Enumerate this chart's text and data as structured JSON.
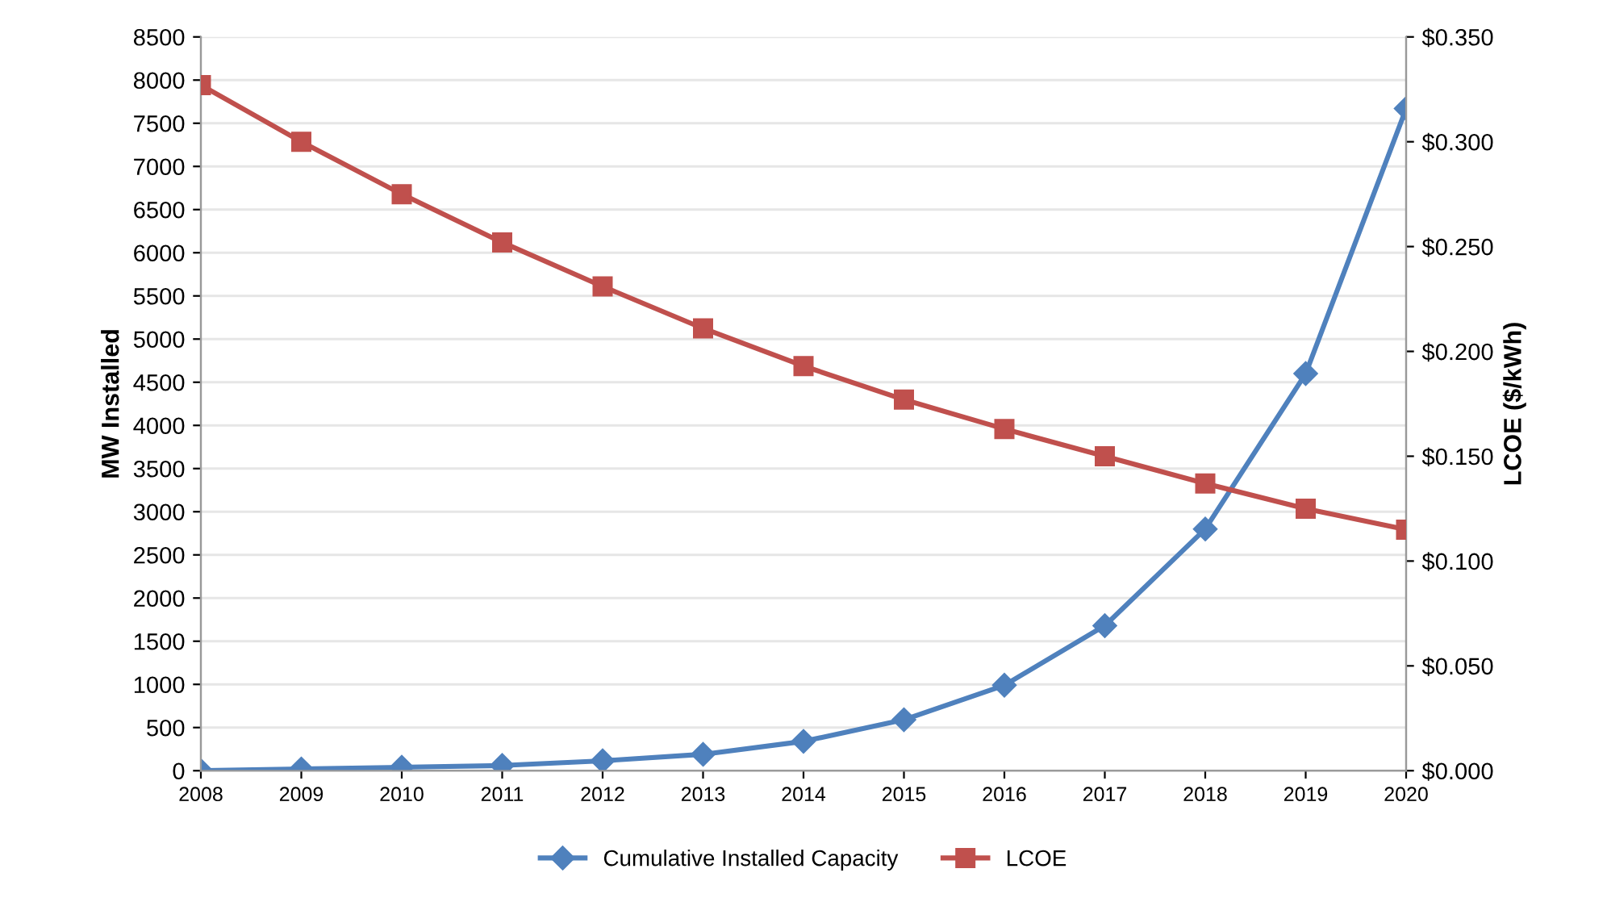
{
  "chart_data": {
    "type": "line",
    "ylabel": "MW Installed",
    "y2label": "LCOE ($/kWh)",
    "categories": [
      "2008",
      "2009",
      "2010",
      "2011",
      "2012",
      "2013",
      "2014",
      "2015",
      "2016",
      "2017",
      "2018",
      "2019",
      "2020"
    ],
    "series": [
      {
        "name": "Cumulative Installed Capacity",
        "color": "#4f81bd",
        "marker": "diamond",
        "values": [
          0,
          20,
          40,
          60,
          115,
          190,
          340,
          590,
          990,
          1680,
          2800,
          4600,
          7670
        ]
      },
      {
        "name": "LCOE",
        "color": "#c0504d",
        "marker": "square",
        "axis": "y2",
        "values": [
          0.327,
          0.3,
          0.275,
          0.252,
          0.231,
          0.211,
          0.193,
          0.177,
          0.163,
          0.15,
          0.137,
          0.125,
          0.115
        ]
      }
    ],
    "ylim": [
      0,
      8500
    ],
    "yticks": [
      0,
      500,
      1000,
      1500,
      2000,
      2500,
      3000,
      3500,
      4000,
      4500,
      5000,
      5500,
      6000,
      6500,
      7000,
      7500,
      8000,
      8500
    ],
    "y2lim": [
      0,
      0.35
    ],
    "y2ticks": [
      {
        "value": 0,
        "label": "$0.000"
      },
      {
        "value": 0.05,
        "label": "$0.050"
      },
      {
        "value": 0.1,
        "label": "$0.100"
      },
      {
        "value": 0.15,
        "label": "$0.150"
      },
      {
        "value": 0.2,
        "label": "$0.200"
      },
      {
        "value": 0.25,
        "label": "$0.250"
      },
      {
        "value": 0.3,
        "label": "$0.300"
      },
      {
        "value": 0.35,
        "label": "$0.350"
      }
    ],
    "grid": "y",
    "legend": "bottom",
    "line_style": "solid"
  }
}
